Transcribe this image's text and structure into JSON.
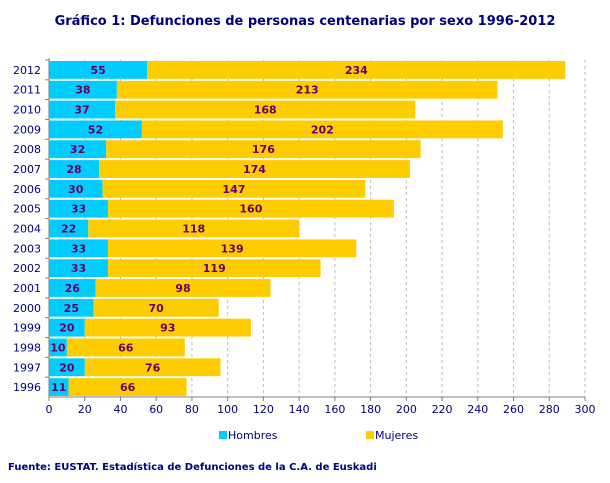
{
  "chart_data": {
    "type": "bar",
    "orientation": "horizontal",
    "stacked": true,
    "title": "Gráfico 1: Defunciones de personas centenarias por sexo 1996-2012",
    "source": "Fuente: EUSTAT. Estadística de Defunciones de la C.A. de Euskadi",
    "categories": [
      "1996",
      "1997",
      "1998",
      "1999",
      "2000",
      "2001",
      "2002",
      "2003",
      "2004",
      "2005",
      "2006",
      "2007",
      "2008",
      "2009",
      "2010",
      "2011",
      "2012"
    ],
    "series": [
      {
        "name": "Hombres",
        "color": "#00CCFF",
        "values": [
          11,
          20,
          10,
          20,
          25,
          26,
          33,
          33,
          22,
          33,
          30,
          28,
          32,
          52,
          37,
          38,
          55
        ]
      },
      {
        "name": "Mujeres",
        "color": "#FFCC00",
        "values": [
          66,
          76,
          66,
          93,
          70,
          98,
          119,
          139,
          118,
          160,
          147,
          174,
          176,
          202,
          168,
          213,
          234
        ]
      }
    ],
    "xlim": [
      0,
      300
    ],
    "xticks": [
      "0",
      "20",
      "40",
      "60",
      "80",
      "100",
      "120",
      "140",
      "160",
      "180",
      "200",
      "220",
      "240",
      "260",
      "280",
      "300"
    ],
    "grid": "vertical dashed",
    "legend": "bottom",
    "label_color": "#660066",
    "text_color": "#000080"
  }
}
